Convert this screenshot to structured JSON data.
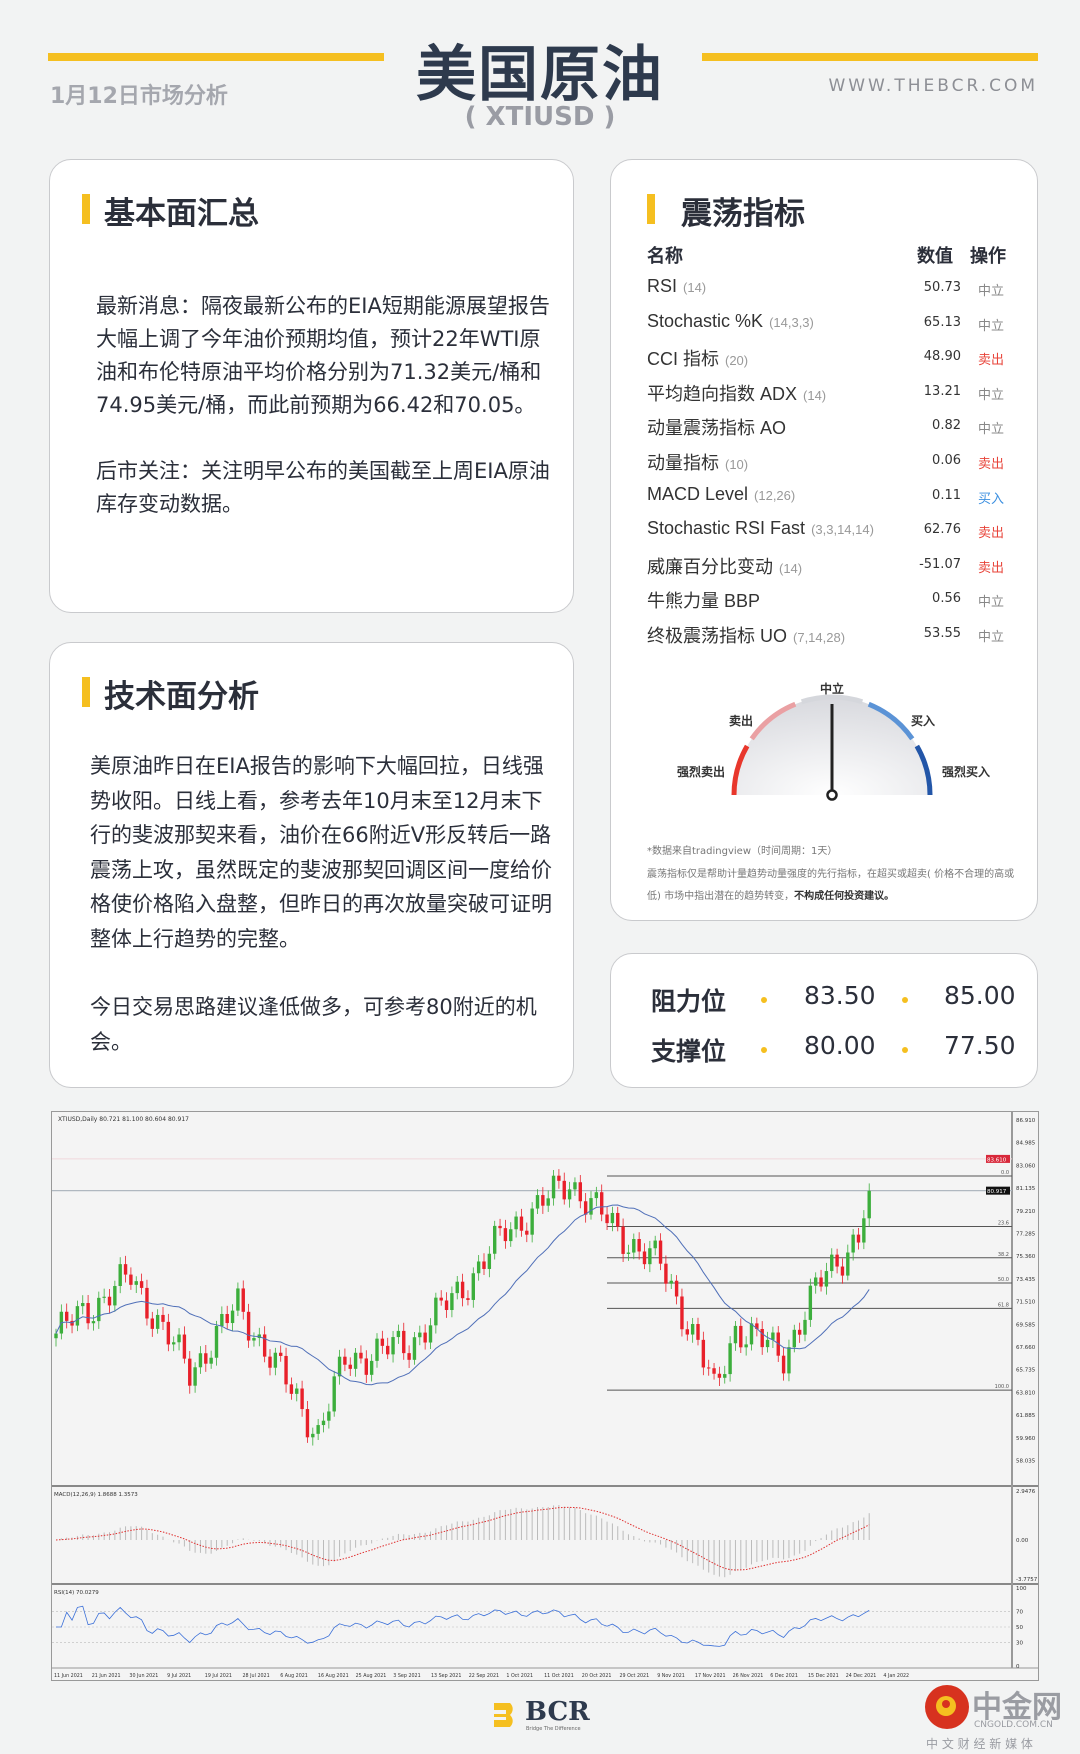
{
  "header": {
    "title": "美国原油",
    "symbol": "( XTIUSD )",
    "date": "1月12日市场分析",
    "site": "WWW.THEBCR.COM",
    "accent": "#f5bf20"
  },
  "fundamentals": {
    "title": "基本面汇总",
    "paragraphs": [
      "最新消息：隔夜最新公布的EIA短期能源展望报告大幅上调了今年油价预期均值，预计22年WTI原油和布伦特原油平均价格分别为71.32美元/桶和74.95美元/桶，而此前预期为66.42和70.05。",
      "后市关注：关注明早公布的美国截至上周EIA原油库存变动数据。"
    ]
  },
  "technical": {
    "title": "技术面分析",
    "paragraphs": [
      "美原油昨日在EIA报告的影响下大幅回拉，日线强势收阳。日线上看，参考去年10月末至12月末下行的斐波那契来看，油价在66附近V形反转后一路震荡上攻，虽然既定的斐波那契回调区间一度给价格使价格陷入盘整，但昨日的再次放量突破可证明整体上行趋势的完整。",
      "今日交易思路建议逢低做多，可参考80附近的机会。"
    ]
  },
  "oscillators": {
    "title": "震荡指标",
    "col_name": "名称",
    "col_value": "数值",
    "col_action": "操作",
    "rows": [
      {
        "name": "RSI",
        "params": "(14)",
        "value": "50.73",
        "action": "中立",
        "tone": "neutral"
      },
      {
        "name": "Stochastic %K",
        "params": "(14,3,3)",
        "value": "65.13",
        "action": "中立",
        "tone": "neutral"
      },
      {
        "name": "CCI 指标",
        "params": "(20)",
        "value": "48.90",
        "action": "卖出",
        "tone": "sell"
      },
      {
        "name": "平均趋向指数 ADX",
        "params": "(14)",
        "value": "13.21",
        "action": "中立",
        "tone": "neutral"
      },
      {
        "name": "动量震荡指标 AO",
        "params": "",
        "value": "0.82",
        "action": "中立",
        "tone": "neutral"
      },
      {
        "name": "动量指标",
        "params": "(10)",
        "value": "0.06",
        "action": "卖出",
        "tone": "sell"
      },
      {
        "name": "MACD Level",
        "params": "(12,26)",
        "value": "0.11",
        "action": "买入",
        "tone": "buy"
      },
      {
        "name": "Stochastic RSI Fast",
        "params": "(3,3,14,14)",
        "value": "62.76",
        "action": "卖出",
        "tone": "sell"
      },
      {
        "name": "威廉百分比变动",
        "params": "(14)",
        "value": "-51.07",
        "action": "卖出",
        "tone": "sell"
      },
      {
        "name": "牛熊力量 BBP",
        "params": "",
        "value": "0.56",
        "action": "中立",
        "tone": "neutral"
      },
      {
        "name": "终极震荡指标 UO",
        "params": "(7,14,28)",
        "value": "53.55",
        "action": "中立",
        "tone": "neutral"
      }
    ],
    "tone_colors": {
      "neutral": "#888888",
      "sell": "#e8443a",
      "buy": "#3b8fe0"
    },
    "gauge": {
      "labels": {
        "neutral": "中立",
        "sell": "卖出",
        "buy": "买入",
        "strong_sell": "强烈卖出",
        "strong_buy": "强烈买入"
      },
      "reading": "中立",
      "needle_position": 0.5,
      "colors": [
        "#e8372c",
        "#eaa0a3",
        "#d5d7dc",
        "#5b93d6",
        "#2356a8"
      ]
    },
    "notes": [
      "*数据来自tradingview（时间周期：1天）",
      "震荡指标仅是帮助计量趋势动量强度的先行指标，在超买或超卖( 价格不合理的高或低) 市场中指出潜在的趋势转变，",
      "不构成任何投资建议。"
    ]
  },
  "levels": {
    "resistance_label": "阻力位",
    "resistance": [
      "83.50",
      "85.00"
    ],
    "support_label": "支撑位",
    "support": [
      "80.00",
      "77.50"
    ]
  },
  "price_chart": {
    "header": "XTIUSD,Daily  80.721 81.100 80.604 80.917",
    "price_ticks": [
      "86.910",
      "84.985",
      "83.060",
      "81.135",
      "79.210",
      "77.285",
      "75.360",
      "73.435",
      "71.510",
      "69.585",
      "67.660",
      "65.735",
      "63.810",
      "61.885",
      "59.960",
      "58.035"
    ],
    "current_price": "80.917",
    "alert_price": "83.610",
    "fib_levels": [
      "0.0",
      "23.6",
      "38.2",
      "50.0",
      "61.8",
      "100.0"
    ],
    "fib_high": 82.16,
    "fib_low": 64.0,
    "date_ticks": [
      "11 Jun 2021",
      "21 Jun 2021",
      "30 Jun 2021",
      "9 Jul 2021",
      "19 Jul 2021",
      "28 Jul 2021",
      "6 Aug 2021",
      "16 Aug 2021",
      "25 Aug 2021",
      "3 Sep 2021",
      "13 Sep 2021",
      "22 Sep 2021",
      "1 Oct 2021",
      "11 Oct 2021",
      "20 Oct 2021",
      "29 Oct 2021",
      "9 Nov 2021",
      "17 Nov 2021",
      "26 Nov 2021",
      "6 Dec 2021",
      "15 Dec 2021",
      "24 Dec 2021",
      "4 Jan 2022"
    ],
    "price_path": [
      {
        "date": "2021-06-11",
        "close": 68.8
      },
      {
        "date": "2021-07-01",
        "close": 73.6
      },
      {
        "date": "2021-07-16",
        "close": 65.5
      },
      {
        "date": "2021-07-29",
        "close": 71.2
      },
      {
        "date": "2021-08-19",
        "close": 60.3
      },
      {
        "date": "2021-08-26",
        "close": 66.5
      },
      {
        "date": "2021-09-13",
        "close": 67.9
      },
      {
        "date": "2021-09-27",
        "close": 72.7
      },
      {
        "date": "2021-10-07",
        "close": 77.4
      },
      {
        "date": "2021-10-25",
        "close": 81.7
      },
      {
        "date": "2021-11-05",
        "close": 77.4
      },
      {
        "date": "2021-11-17",
        "close": 74.6
      },
      {
        "date": "2021-11-26",
        "close": 67.9
      },
      {
        "date": "2021-12-01",
        "close": 63.7
      },
      {
        "date": "2021-12-07",
        "close": 69.3
      },
      {
        "date": "2021-12-20",
        "close": 67.0
      },
      {
        "date": "2021-12-30",
        "close": 74.1
      },
      {
        "date": "2022-01-07",
        "close": 76.9
      },
      {
        "date": "2022-01-11",
        "close": 80.9
      }
    ],
    "up_color": "#3cae3c",
    "down_color": "#e8202a",
    "ma_color": "#4f6fb8",
    "macd": {
      "header": "MACD(12,26,9) 1.8688 1.3573",
      "ticks": [
        "2.9476",
        "0.00",
        "-3.7757"
      ]
    },
    "rsi": {
      "header": "RSI(14) 70.0279",
      "ticks": [
        "100",
        "70",
        "50",
        "30",
        "0"
      ]
    }
  },
  "footer": {
    "brand": "BCR",
    "brand_tagline": "Bridge The Difference",
    "partner": "中金网",
    "partner_url": "CNGOLD.COM.CN",
    "partner_tagline": "中 文 财 经 新 媒 体"
  }
}
